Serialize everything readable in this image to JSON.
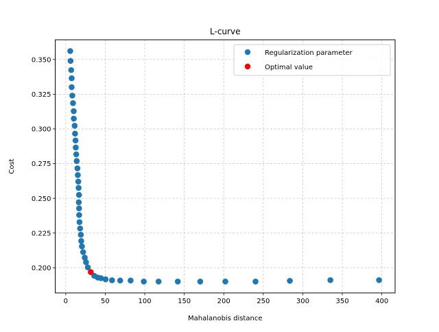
{
  "chart_data": {
    "type": "scatter",
    "title": "L-curve",
    "xlabel": "Mahalanobis distance",
    "ylabel": "Cost",
    "xlim": [
      -13.3,
      416.8
    ],
    "ylim": [
      0.1819,
      0.3642
    ],
    "grid": true,
    "legend_position": "upper right",
    "xticks": [
      0,
      50,
      100,
      150,
      200,
      250,
      300,
      350,
      400
    ],
    "xtick_labels": [
      "0",
      "50",
      "100",
      "150",
      "200",
      "250",
      "300",
      "350",
      "400"
    ],
    "yticks": [
      0.2,
      0.225,
      0.25,
      0.275,
      0.3,
      0.325,
      0.35
    ],
    "ytick_labels": [
      "0.200",
      "0.225",
      "0.250",
      "0.275",
      "0.300",
      "0.325",
      "0.350"
    ],
    "series": [
      {
        "name": "Regularization parameter",
        "color": "#1f77b4",
        "x": [
          5.7,
          6.1,
          6.9,
          7.5,
          7.5,
          8.3,
          9.2,
          10.1,
          10.2,
          11.3,
          11.8,
          12.4,
          12.7,
          13.3,
          13.9,
          14.8,
          15.3,
          15.9,
          16.3,
          16.8,
          16.5,
          16.9,
          17.0,
          17.4,
          18.2,
          19.1,
          19.6,
          20.5,
          22.0,
          24.1,
          25.7,
          28.0,
          36.1,
          40.5,
          44.5,
          50.4,
          58.6,
          68.9,
          82.1,
          98.8,
          117.5,
          141.8,
          170.2,
          202.0,
          240.2,
          283.6,
          334.9,
          396.5
        ],
        "y": [
          0.3561,
          0.349,
          0.3424,
          0.3365,
          0.3301,
          0.324,
          0.3186,
          0.3128,
          0.3074,
          0.3023,
          0.2966,
          0.2917,
          0.2866,
          0.2817,
          0.2769,
          0.2716,
          0.2668,
          0.2621,
          0.2575,
          0.2525,
          0.2472,
          0.2428,
          0.238,
          0.2329,
          0.2283,
          0.2238,
          0.2193,
          0.2154,
          0.2113,
          0.2073,
          0.204,
          0.2003,
          0.1942,
          0.193,
          0.1925,
          0.1917,
          0.191,
          0.1908,
          0.1908,
          0.1901,
          0.1901,
          0.1901,
          0.1901,
          0.1901,
          0.1901,
          0.1906,
          0.1911,
          0.1911
        ]
      },
      {
        "name": "Optimal value",
        "color": "#ff0000",
        "x": [
          31.7
        ],
        "y": [
          0.1969
        ]
      }
    ]
  },
  "figure": {
    "title": "L-curve",
    "xlabel": "Mahalanobis distance",
    "ylabel": "Cost",
    "legend": [
      {
        "label": "Regularization parameter",
        "color": "#1f77b4",
        "icon": "circle-marker-icon"
      },
      {
        "label": "Optimal value",
        "color": "#ff0000",
        "icon": "circle-marker-icon"
      }
    ],
    "colors": {
      "axis": "#000000",
      "grid": "#b0b0b0",
      "legend_border": "#cccccc",
      "background": "#ffffff"
    }
  }
}
